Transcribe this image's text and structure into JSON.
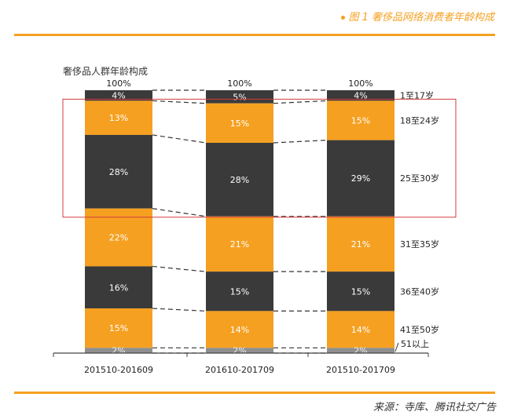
{
  "figure_title": "图 1 奢侈品网络消费者年龄构成",
  "source": "来源：寺库、腾讯社交广告",
  "colors": {
    "orange": "#f5a021",
    "dark": "#3a3a3a",
    "small": "#8f8f8f",
    "highlight": "#d43c3c"
  },
  "chart_data": {
    "type": "bar",
    "stacked": true,
    "title": "奢侈品人群年龄构成",
    "categories": [
      "201510-201609",
      "201610-201709",
      "201510-201709"
    ],
    "totals": [
      "100%",
      "100%",
      "100%"
    ],
    "ylim": [
      0,
      100
    ],
    "legend_position": "right",
    "series": [
      {
        "name": "1至17岁",
        "values": [
          4,
          5,
          4
        ],
        "color": "dark"
      },
      {
        "name": "18至24岁",
        "values": [
          13,
          15,
          15
        ],
        "color": "orange"
      },
      {
        "name": "25至30岁",
        "values": [
          28,
          28,
          29
        ],
        "color": "dark"
      },
      {
        "name": "31至35岁",
        "values": [
          22,
          21,
          21
        ],
        "color": "orange"
      },
      {
        "name": "36至40岁",
        "values": [
          16,
          15,
          15
        ],
        "color": "dark"
      },
      {
        "name": "41至50岁",
        "values": [
          15,
          14,
          14
        ],
        "color": "orange"
      },
      {
        "name": "51以上",
        "values": [
          2,
          2,
          2
        ],
        "color": "small"
      }
    ],
    "highlight_series": [
      "18至24岁",
      "25至30岁"
    ]
  }
}
